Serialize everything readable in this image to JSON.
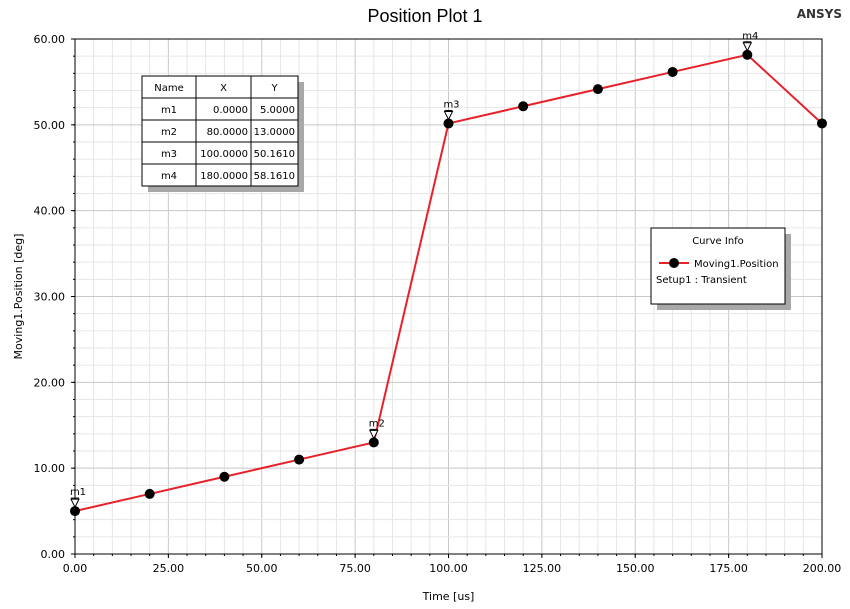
{
  "brand": "ANSYS",
  "chart_data": {
    "type": "line",
    "title": "Position Plot 1",
    "xlabel": "Time [us]",
    "ylabel": "Moving1.Position [deg]",
    "xlim": [
      0,
      200
    ],
    "ylim": [
      0,
      60
    ],
    "x_ticks": [
      "0.00",
      "25.00",
      "50.00",
      "75.00",
      "100.00",
      "125.00",
      "150.00",
      "175.00",
      "200.00"
    ],
    "y_ticks": [
      "0.00",
      "10.00",
      "20.00",
      "30.00",
      "40.00",
      "50.00",
      "60.00"
    ],
    "grid": true,
    "series": [
      {
        "name": "Moving1.Position",
        "color": "#e8202a",
        "marker_color": "#000000",
        "x": [
          0,
          20,
          40,
          60,
          80,
          100,
          120,
          140,
          160,
          180,
          200
        ],
        "y": [
          5.0,
          7.0,
          9.0,
          11.0,
          13.0,
          50.161,
          52.161,
          54.161,
          56.161,
          58.161,
          50.161
        ]
      }
    ],
    "markers": [
      {
        "name": "m1",
        "x": 0,
        "y": 5.0
      },
      {
        "name": "m2",
        "x": 80,
        "y": 13.0
      },
      {
        "name": "m3",
        "x": 100,
        "y": 50.161
      },
      {
        "name": "m4",
        "x": 180,
        "y": 58.161
      }
    ],
    "marker_table": {
      "headers": [
        "Name",
        "X",
        "Y"
      ],
      "rows": [
        [
          "m1",
          "0.0000",
          "5.0000"
        ],
        [
          "m2",
          "80.0000",
          "13.0000"
        ],
        [
          "m3",
          "100.0000",
          "50.1610"
        ],
        [
          "m4",
          "180.0000",
          "58.1610"
        ]
      ]
    },
    "legend": {
      "title": "Curve Info",
      "entry": "Moving1.Position",
      "subtitle": "Setup1 : Transient",
      "placement": "right"
    }
  }
}
